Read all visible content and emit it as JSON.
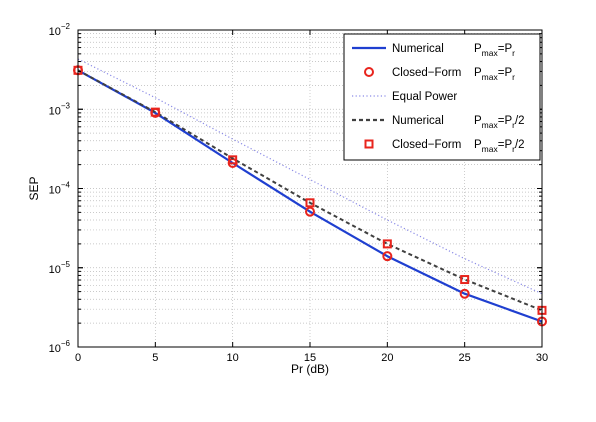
{
  "chart_data": {
    "type": "line",
    "xlabel": "Pr (dB)",
    "ylabel": "SEP",
    "xlim": [
      0,
      30
    ],
    "ylim": [
      1e-06,
      0.01
    ],
    "yscale": "log",
    "grid": true,
    "legend_placement": "top-right",
    "x_ticks": [
      "0",
      "5",
      "10",
      "15",
      "20",
      "25",
      "30"
    ],
    "y_ticks": [
      {
        "base": "10",
        "exp": "−6",
        "value": 1e-06
      },
      {
        "base": "10",
        "exp": "−5",
        "value": 1e-05
      },
      {
        "base": "10",
        "exp": "−4",
        "value": 0.0001
      },
      {
        "base": "10",
        "exp": "−3",
        "value": 0.001
      },
      {
        "base": "10",
        "exp": "−2",
        "value": 0.01
      }
    ],
    "series": [
      {
        "name": "Numerical",
        "cond": {
          "a": "P",
          "as": "max",
          "b": "=P",
          "bs": "r",
          "c": ""
        },
        "style": "line",
        "color": "#1f3fd0",
        "dash": "",
        "x": [
          0,
          5,
          10,
          15,
          20,
          25,
          30
        ],
        "y": [
          0.0031,
          0.0009,
          0.00021,
          5.1e-05,
          1.4e-05,
          4.7e-06,
          2.1e-06
        ]
      },
      {
        "name": "Closed−Form",
        "cond": {
          "a": "P",
          "as": "max",
          "b": "=P",
          "bs": "r",
          "c": ""
        },
        "style": "marker-circle",
        "color": "#e8241d",
        "x": [
          0,
          5,
          10,
          15,
          20,
          25,
          30
        ],
        "y": [
          0.0031,
          0.0009,
          0.00021,
          5.1e-05,
          1.4e-05,
          4.7e-06,
          2.1e-06
        ]
      },
      {
        "name": "Equal Power",
        "cond": null,
        "style": "line",
        "color": "#8a8ae6",
        "dash": "1.2,2.4",
        "x": [
          0,
          5,
          10,
          15,
          20,
          25,
          30
        ],
        "y": [
          0.0043,
          0.0014,
          0.00042,
          0.00013,
          4e-05,
          1.3e-05,
          4.7e-06
        ]
      },
      {
        "name": "Numerical",
        "cond": {
          "a": "P",
          "as": "max",
          "b": "=P",
          "bs": "r",
          "c": "/2"
        },
        "style": "line",
        "color": "#404040",
        "dash": "4,3",
        "x": [
          0,
          5,
          10,
          15,
          20,
          25,
          30
        ],
        "y": [
          0.0031,
          0.00092,
          0.00024,
          6.6e-05,
          2e-05,
          7.1e-06,
          2.9e-06
        ]
      },
      {
        "name": "Closed−Form",
        "cond": {
          "a": "P",
          "as": "max",
          "b": "=P",
          "bs": "r",
          "c": "/2"
        },
        "style": "marker-square",
        "color": "#e8241d",
        "x": [
          0,
          5,
          10,
          15,
          20,
          25,
          30
        ],
        "y": [
          0.0031,
          0.00092,
          0.00023,
          6.6e-05,
          2e-05,
          7.1e-06,
          2.9e-06
        ]
      }
    ]
  }
}
